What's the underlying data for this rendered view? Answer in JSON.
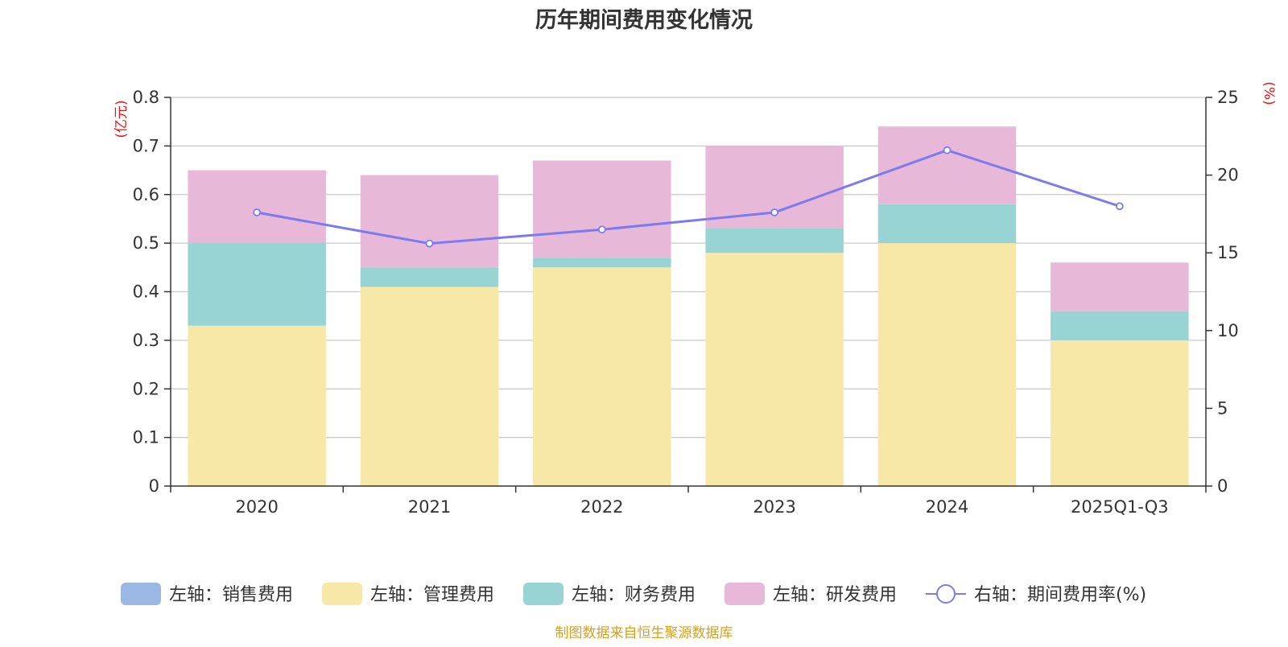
{
  "chart_data": {
    "type": "bar",
    "stacked": true,
    "title": "历年期间费用变化情况",
    "categories": [
      "2020",
      "2021",
      "2022",
      "2023",
      "2024",
      "2025Q1-Q3"
    ],
    "left_axis": {
      "unit_label": "(亿元)",
      "ylim": [
        0,
        0.8
      ],
      "ticks": [
        "0",
        "0.1",
        "0.2",
        "0.3",
        "0.4",
        "0.5",
        "0.6",
        "0.7",
        "0.8"
      ]
    },
    "right_axis": {
      "unit_label": "(%)",
      "ylim": [
        0,
        25
      ],
      "ticks": [
        "0",
        "5",
        "10",
        "15",
        "20",
        "25"
      ]
    },
    "series": [
      {
        "name": "左轴：销售费用",
        "axis": "left",
        "kind": "bar",
        "color": "#9ab8e3",
        "values": [
          0,
          0,
          0,
          0,
          0,
          0
        ]
      },
      {
        "name": "左轴：管理费用",
        "axis": "left",
        "kind": "bar",
        "color": "#f8e8a8",
        "values": [
          0.33,
          0.41,
          0.45,
          0.48,
          0.5,
          0.3
        ]
      },
      {
        "name": "左轴：财务费用",
        "axis": "left",
        "kind": "bar",
        "color": "#98d4d4",
        "values": [
          0.17,
          0.04,
          0.02,
          0.05,
          0.08,
          0.06
        ]
      },
      {
        "name": "左轴：研发费用",
        "axis": "left",
        "kind": "bar",
        "color": "#e8b8d8",
        "values": [
          0.15,
          0.19,
          0.2,
          0.17,
          0.16,
          0.1
        ]
      },
      {
        "name": "右轴：期间费用率(%)",
        "axis": "right",
        "kind": "line",
        "color": "#7b7bf0",
        "values": [
          17.6,
          15.6,
          16.5,
          17.6,
          21.6,
          18.0
        ]
      }
    ],
    "legend_position": "bottom",
    "grid": true,
    "source": "制图数据来自恒生聚源数据库"
  }
}
